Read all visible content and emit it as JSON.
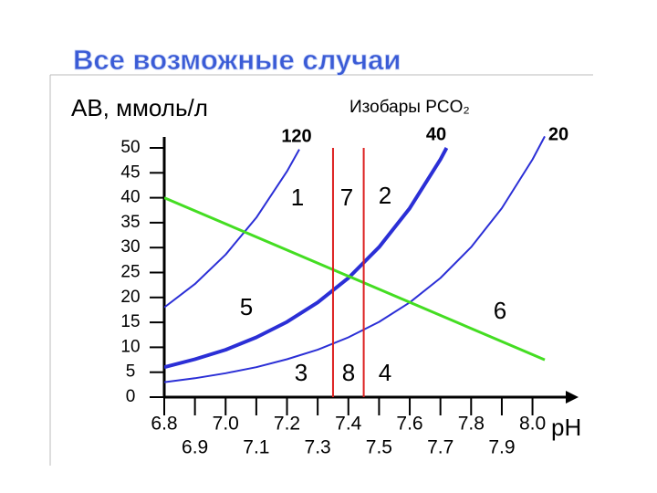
{
  "chart_data": {
    "type": "line",
    "title": "Все возможные случаи",
    "y_label": "AB, ммоль/л",
    "x_label": "pH",
    "isobar_label": "Изобары PCO₂",
    "xlim": [
      6.8,
      8.15
    ],
    "ylim": [
      0,
      50
    ],
    "yticks": [
      0,
      5,
      10,
      15,
      20,
      25,
      30,
      35,
      40,
      45,
      50
    ],
    "xticks": [
      6.8,
      6.9,
      {
        "value": 7.0,
        "label": "7.0"
      },
      7.1,
      7.2,
      7.3,
      7.4,
      7.5,
      7.6,
      7.7,
      7.8,
      7.9,
      {
        "value": 8.0,
        "label": "8.0"
      }
    ],
    "series": [
      {
        "name": "120",
        "color": "#2b2fd6",
        "x": [
          6.8,
          6.9,
          7.0,
          7.1,
          7.2,
          7.24
        ],
        "values": [
          18.0,
          22.7,
          28.6,
          36.0,
          45.3,
          49.7
        ]
      },
      {
        "name": "40",
        "color": "#2b2fd6",
        "x": [
          6.8,
          6.9,
          7.0,
          7.1,
          7.2,
          7.3,
          7.4,
          7.5,
          7.6,
          7.7,
          7.72
        ],
        "values": [
          6.0,
          7.6,
          9.5,
          12.0,
          15.1,
          19.0,
          23.9,
          30.1,
          37.9,
          47.7,
          50.0
        ]
      },
      {
        "name": "20",
        "color": "#2b2fd6",
        "x": [
          6.8,
          6.9,
          7.0,
          7.1,
          7.2,
          7.3,
          7.4,
          7.5,
          7.6,
          7.7,
          7.8,
          7.9,
          8.0,
          8.04
        ],
        "values": [
          3.0,
          3.8,
          4.8,
          6.0,
          7.6,
          9.5,
          12.0,
          15.1,
          19.0,
          23.9,
          30.1,
          37.9,
          47.7,
          52.3
        ]
      }
    ],
    "buffer_line": {
      "color": "#44dd22",
      "x": [
        6.8,
        8.04
      ],
      "values": [
        40,
        7.5
      ]
    },
    "vlines": {
      "color": "#dd2222",
      "x": [
        7.35,
        7.45
      ]
    },
    "region_labels": [
      "1",
      "7",
      "2",
      "5",
      "6",
      "3",
      "8",
      "4"
    ]
  }
}
